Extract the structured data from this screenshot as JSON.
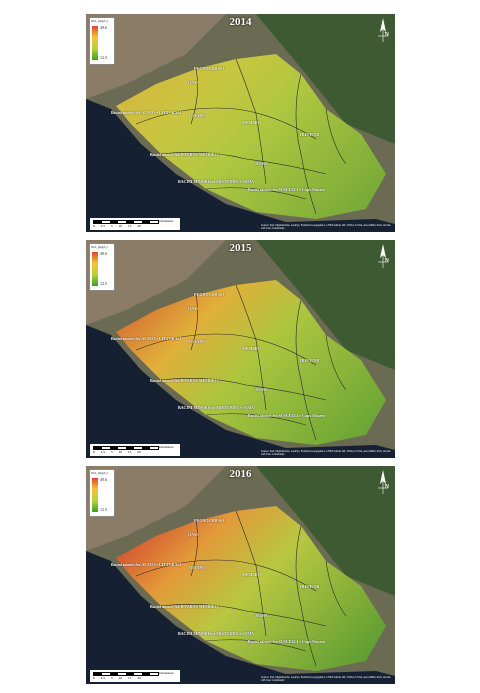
{
  "figure": {
    "panels": [
      {
        "year": "2014",
        "ramp": 0
      },
      {
        "year": "2015",
        "ramp": 1
      },
      {
        "year": "2016",
        "ramp": 2
      }
    ],
    "legend": {
      "title": "NO₂ (mg/L)",
      "max": "49.6",
      "min": "12.5",
      "colors": [
        "#e0452b",
        "#f6c23a",
        "#b7d23b",
        "#3c9e2c"
      ]
    },
    "north_label": "N",
    "labels": {
      "pugnochiuso": "PUGNOCHIUSO",
      "oasi": "OASI",
      "basin_alto": "Bacini minori fra ALATO e LITTORALI",
      "oviano": "OVIANO",
      "membro": "MEMBRO",
      "basin_ispara": "Bacini minori fra IPPARA e MEMBRO",
      "trefiumi": "TREFIUMI",
      "suma": "SUMA",
      "basin_mistondo": "BACINI MINORI fra MISTONDO e SUMA",
      "basin_suscelli": "Bacini minori fra SUSCELLI e Capo Passero"
    },
    "scale": {
      "ticks": "0 2.5 5 10 15 20",
      "unit": "Kilometers"
    },
    "credits": "Source: Esri, DigitalGlobe, GeoEye, Earthstar Geographics, CNES/Airbus DS, USDA, USGS, AeroGRID, IGN, and the GIS User Community"
  }
}
